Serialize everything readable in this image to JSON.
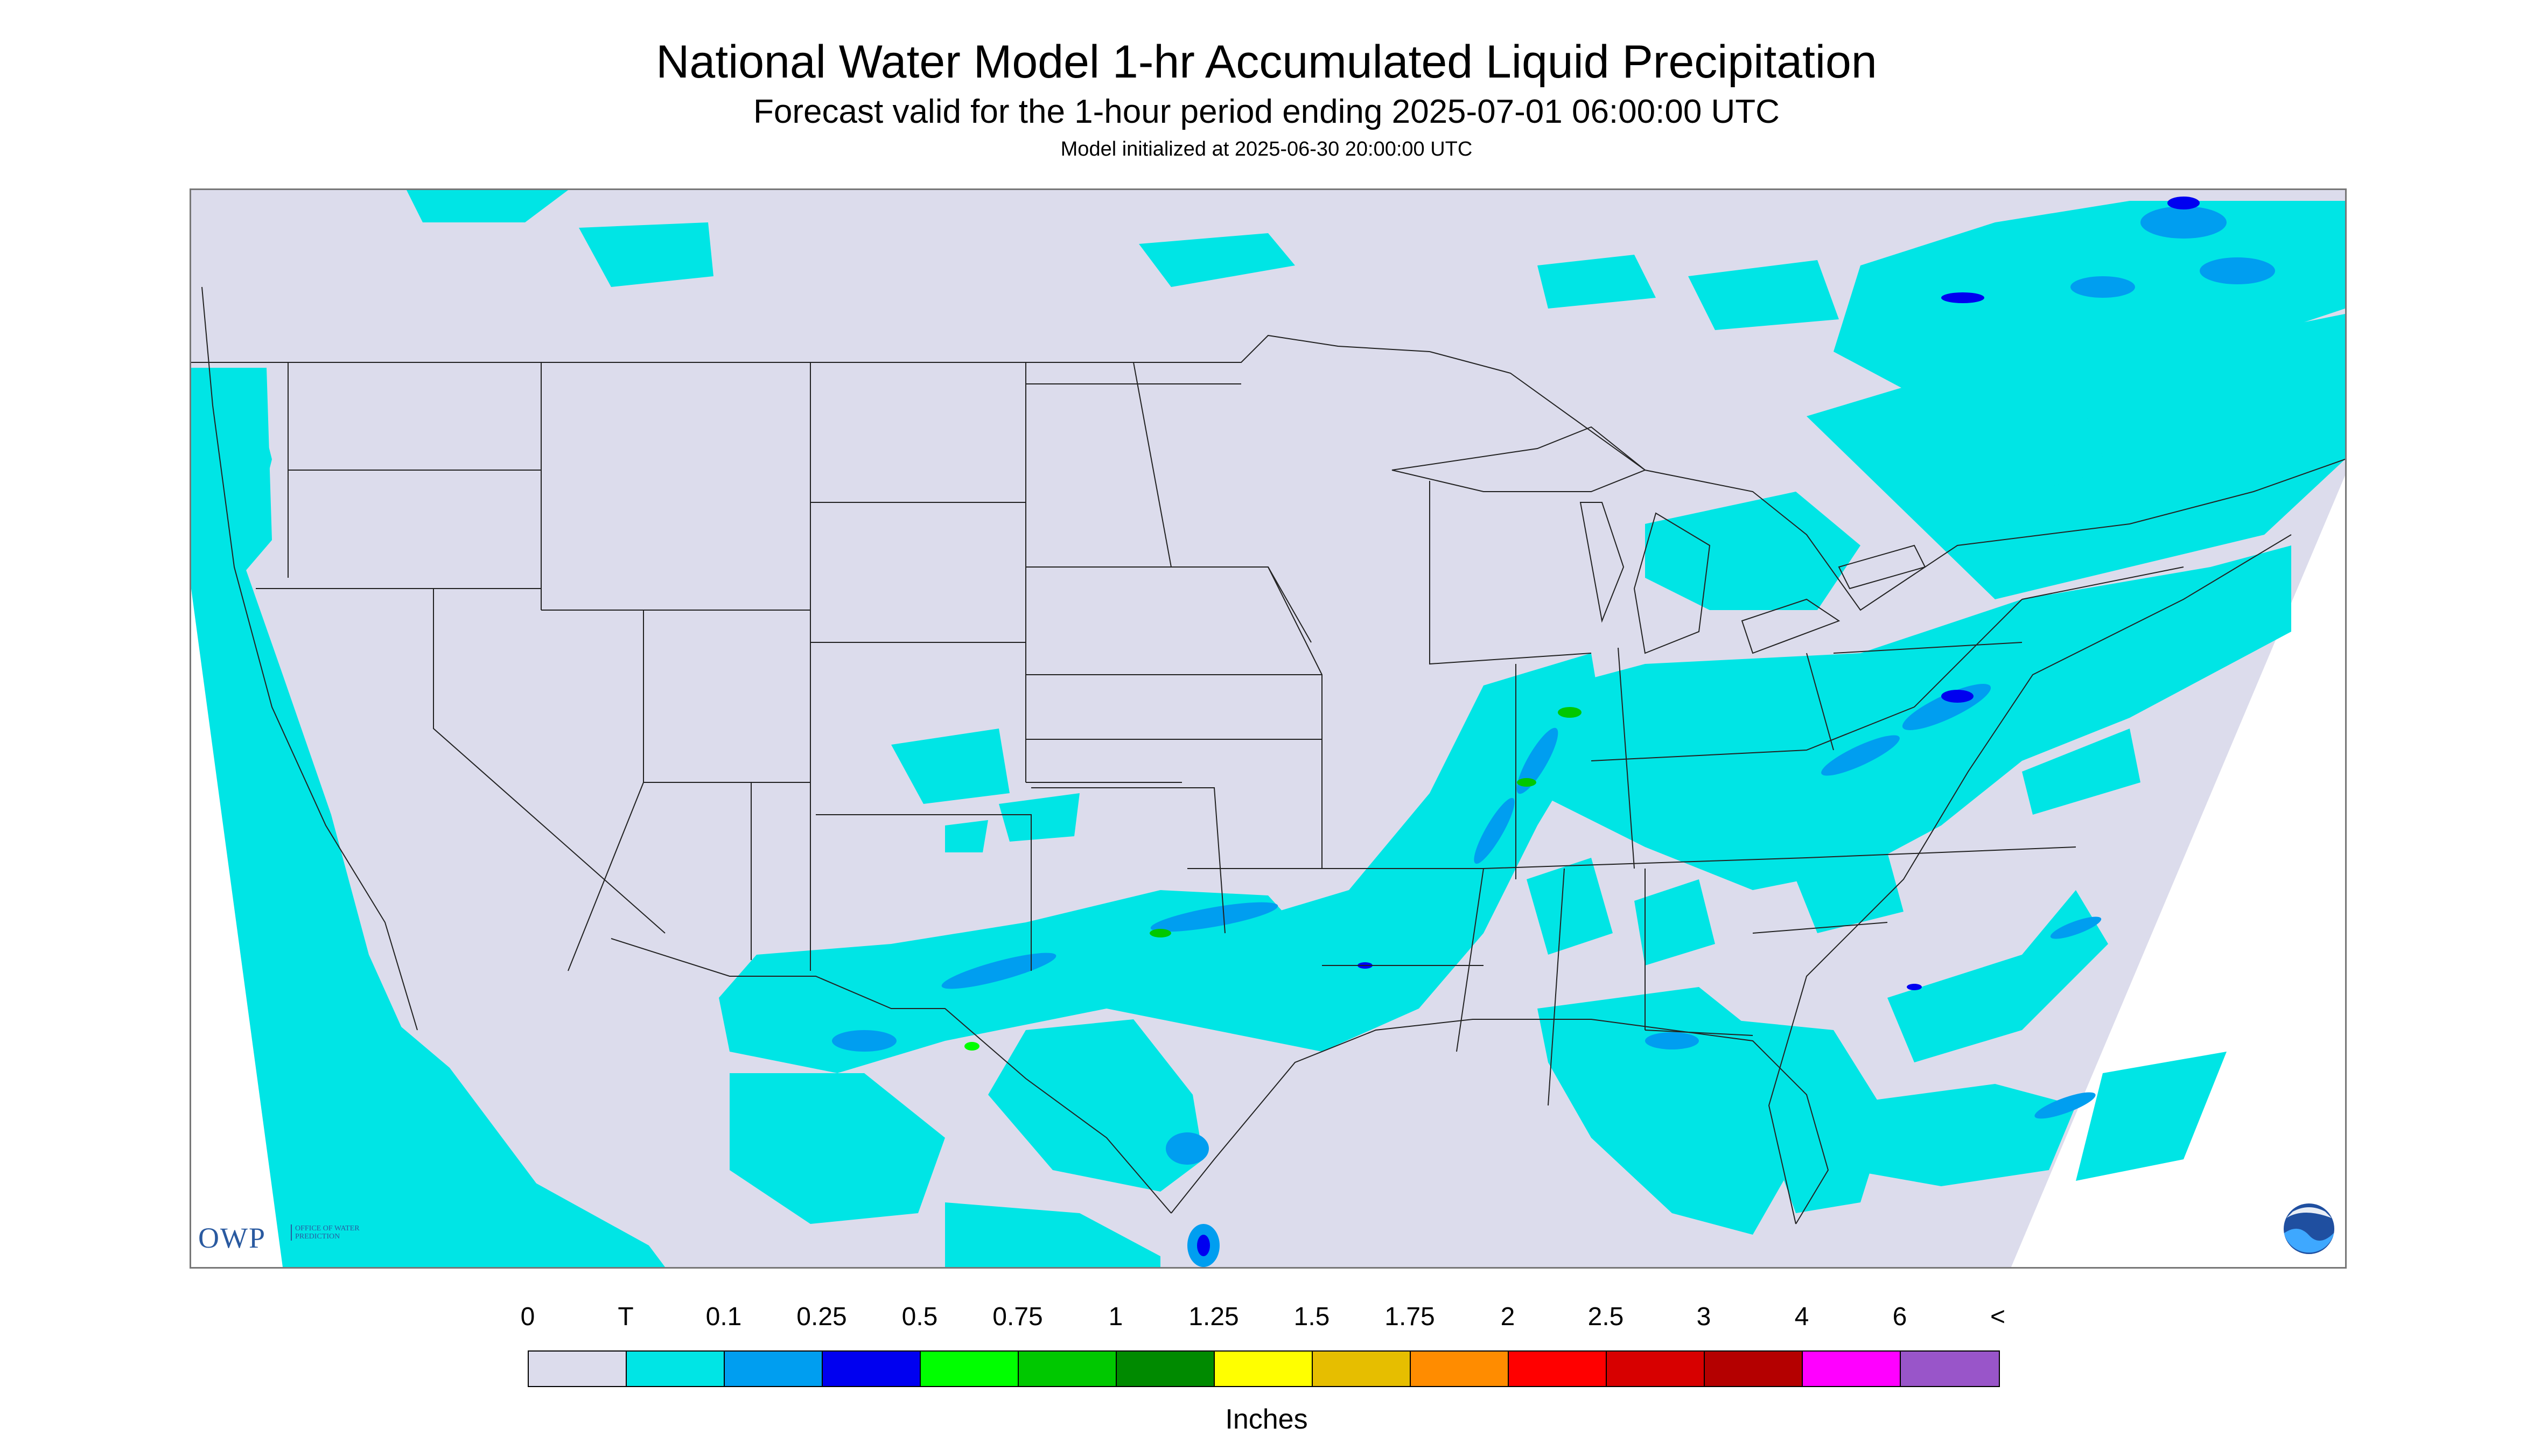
{
  "title": "National Water Model 1-hr Accumulated Liquid Precipitation",
  "subtitle": "Forecast valid for the 1-hour period ending 2025-07-01 06:00:00 UTC",
  "model_init": "Model initialized at 2025-06-30 20:00:00 UTC",
  "legend": {
    "ticks": [
      "0",
      "T",
      "0.1",
      "0.25",
      "0.5",
      "0.75",
      "1",
      "1.25",
      "1.5",
      "1.75",
      "2",
      "2.5",
      "3",
      "4",
      "6",
      "<"
    ],
    "colors": [
      "#dcdcec",
      "#00e5e5",
      "#009ef0",
      "#0000f0",
      "#00ff00",
      "#00c800",
      "#008a00",
      "#ffff00",
      "#e6be00",
      "#ff8c00",
      "#ff0000",
      "#d70000",
      "#b40000",
      "#ff00ff",
      "#9955c9"
    ],
    "units_label": "Inches"
  },
  "logos": {
    "owp_text": "OWP",
    "owp_sub": "OFFICE OF WATER PREDICTION",
    "noaa_text": "NOAA"
  },
  "map": {
    "background_color": "#dcdcec",
    "outside_domain_color": "#ffffff",
    "boundary_color": "#222222"
  }
}
